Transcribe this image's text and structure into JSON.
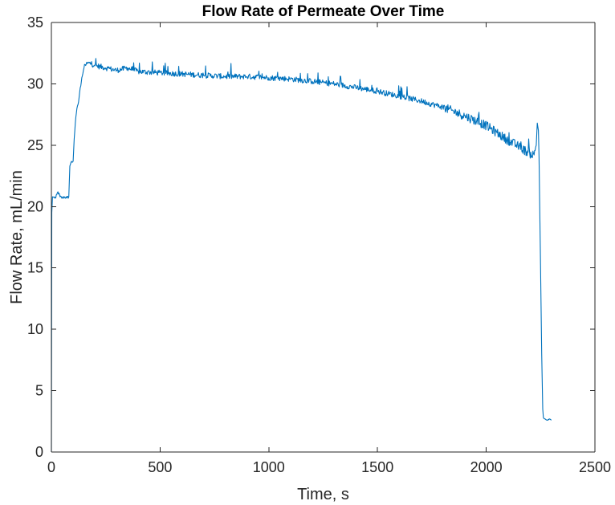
{
  "chart_data": {
    "type": "line",
    "title": "Flow Rate of Permeate Over Time",
    "xlabel": "Time, s",
    "ylabel": "Flow Rate, mL/min",
    "xlim": [
      0,
      2500
    ],
    "ylim": [
      0,
      35
    ],
    "xticks": [
      0,
      500,
      1000,
      1500,
      2000,
      2500
    ],
    "yticks": [
      0,
      5,
      10,
      15,
      20,
      25,
      30,
      35
    ],
    "grid": false,
    "legend": "none",
    "series": [
      {
        "color": "#0072BD",
        "x": [
          0,
          2,
          5,
          20,
          30,
          40,
          50,
          60,
          70,
          80,
          85,
          90,
          100,
          105,
          110,
          115,
          120,
          125,
          130,
          140,
          150,
          160,
          175,
          200,
          250,
          300,
          350,
          400,
          500,
          600,
          700,
          800,
          900,
          1000,
          1100,
          1200,
          1300,
          1400,
          1500,
          1600,
          1700,
          1800,
          1900,
          2000,
          2050,
          2100,
          2150,
          2200,
          2220,
          2230,
          2235,
          2240,
          2243,
          2250,
          2255,
          2260,
          2263,
          2270,
          2280,
          2290,
          2300
        ],
        "y": [
          0.0,
          19.5,
          20.8,
          20.7,
          21.2,
          20.8,
          20.7,
          20.8,
          20.7,
          20.8,
          23.3,
          23.6,
          23.7,
          25.5,
          26.8,
          27.6,
          28.2,
          28.5,
          29.3,
          30.5,
          31.3,
          31.6,
          31.7,
          31.5,
          31.3,
          31.1,
          31.3,
          31.0,
          30.9,
          30.8,
          30.7,
          30.6,
          30.6,
          30.5,
          30.4,
          30.2,
          30.0,
          29.7,
          29.4,
          29.0,
          28.6,
          28.1,
          27.4,
          26.6,
          26.0,
          25.4,
          24.9,
          24.3,
          24.2,
          25.0,
          26.8,
          26.2,
          24.0,
          15.0,
          8.0,
          3.5,
          2.8,
          2.7,
          2.6,
          2.7,
          2.6
        ]
      }
    ]
  }
}
